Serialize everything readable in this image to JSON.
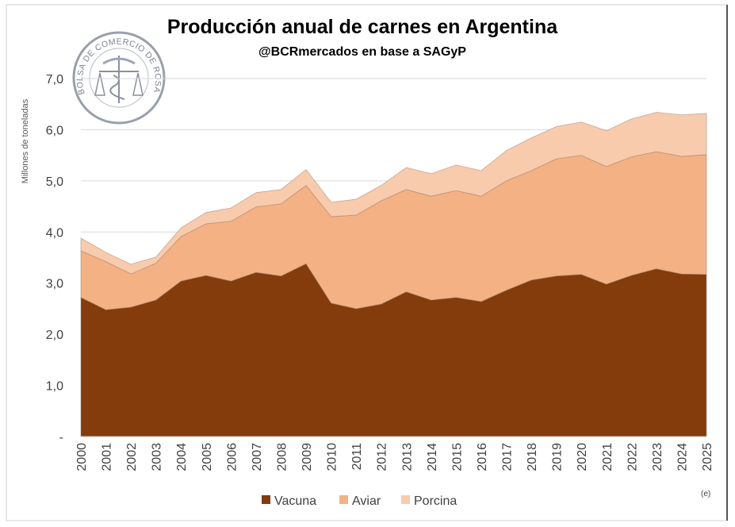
{
  "chart_data": {
    "type": "area",
    "stacked": true,
    "title": "Producción anual de carnes en Argentina",
    "subtitle": "@BCRmercados en base a SAGyP",
    "xlabel": "",
    "ylabel": "Millones de toneladas",
    "ylim": [
      0,
      7
    ],
    "yticks": [
      "-",
      "1,0",
      "2,0",
      "3,0",
      "4,0",
      "5,0",
      "6,0",
      "7,0"
    ],
    "grid": true,
    "legend_position": "bottom",
    "annotation": "(e)",
    "logo_text": "BOLSA DE COMERCIO DE ROSARIO",
    "x": [
      "2000",
      "2001",
      "2002",
      "2003",
      "2004",
      "2005",
      "2006",
      "2007",
      "2008",
      "2009",
      "2010",
      "2011",
      "2012",
      "2013",
      "2014",
      "2015",
      "2016",
      "2017",
      "2018",
      "2019",
      "2020",
      "2021",
      "2022",
      "2023",
      "2024",
      "2025"
    ],
    "series": [
      {
        "name": "Vacuna",
        "color": "#843c0c",
        "values": [
          2.72,
          2.48,
          2.53,
          2.67,
          3.04,
          3.15,
          3.04,
          3.21,
          3.14,
          3.38,
          2.61,
          2.5,
          2.59,
          2.83,
          2.67,
          2.72,
          2.64,
          2.86,
          3.06,
          3.14,
          3.17,
          2.98,
          3.15,
          3.28,
          3.18,
          3.17
        ]
      },
      {
        "name": "Aviar",
        "color": "#f4b183",
        "values": [
          0.91,
          0.94,
          0.65,
          0.72,
          0.87,
          1.01,
          1.17,
          1.28,
          1.41,
          1.53,
          1.69,
          1.83,
          2.02,
          2.0,
          2.03,
          2.09,
          2.06,
          2.14,
          2.14,
          2.29,
          2.33,
          2.3,
          2.32,
          2.29,
          2.3,
          2.34
        ]
      },
      {
        "name": "Porcina",
        "color": "#f8cbad",
        "values": [
          0.25,
          0.18,
          0.19,
          0.12,
          0.17,
          0.22,
          0.26,
          0.28,
          0.28,
          0.31,
          0.28,
          0.31,
          0.3,
          0.43,
          0.44,
          0.5,
          0.5,
          0.59,
          0.64,
          0.63,
          0.65,
          0.7,
          0.74,
          0.77,
          0.81,
          0.81
        ]
      }
    ]
  }
}
